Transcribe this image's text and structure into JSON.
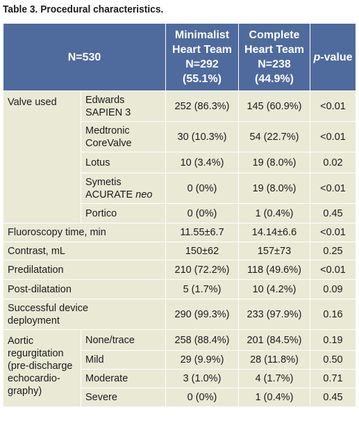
{
  "caption": "Table 3. Procedural characteristics.",
  "header": {
    "n": "N=530",
    "group1": [
      "Minimalist",
      "Heart Team",
      "N=292",
      "(55.1%)"
    ],
    "group2": [
      "Complete",
      "Heart Team",
      "N=238",
      "(44.9%)"
    ],
    "pvalue_italic": "p",
    "pvalue_rest": "-value"
  },
  "valve": {
    "label": "Valve used",
    "rows": [
      {
        "name": [
          "Edwards",
          "SAPIEN 3"
        ],
        "min": "252 (86.3%)",
        "comp": "145 (60.9%)",
        "p": "<0.01"
      },
      {
        "name": [
          "Medtronic",
          "CoreValve"
        ],
        "min": "30 (10.3%)",
        "comp": "54 (22.7%)",
        "p": "<0.01"
      },
      {
        "name": [
          "Lotus"
        ],
        "min": "10 (3.4%)",
        "comp": "19 (8.0%)",
        "p": "0.02"
      },
      {
        "name": [
          "Symetis",
          "ACURATE "
        ],
        "name_italic": "neo",
        "min": "0 (0%)",
        "comp": "19 (8.0%)",
        "p": "<0.01"
      },
      {
        "name": [
          "Portico"
        ],
        "min": "0 (0%)",
        "comp": "1 (0.4%)",
        "p": "0.45"
      }
    ]
  },
  "single_rows": [
    {
      "label": [
        "Fluoroscopy time, min"
      ],
      "min": "11.55±6.7",
      "comp": "14.14±6.6",
      "p": "<0.01"
    },
    {
      "label": [
        "Contrast, mL"
      ],
      "min": "150±62",
      "comp": "157±73",
      "p": "0.25"
    },
    {
      "label": [
        "Predilatation"
      ],
      "min": "210 (72.2%)",
      "comp": "118 (49.6%)",
      "p": "<0.01"
    },
    {
      "label": [
        "Post-dilatation"
      ],
      "min": "5 (1.7%)",
      "comp": "10 (4.2%)",
      "p": "0.09"
    },
    {
      "label": [
        "Successful device",
        "deployment"
      ],
      "min": "290 (99.3%)",
      "comp": "233 (97.9%)",
      "p": "0.16"
    }
  ],
  "aortic": {
    "label": [
      "Aortic",
      "regurgitation",
      "(pre-discharge",
      "echocardio-",
      "graphy)"
    ],
    "rows": [
      {
        "name": "None/trace",
        "min": "258 (88.4%)",
        "comp": "201 (84.5%)",
        "p": "0.19"
      },
      {
        "name": "Mild",
        "min": "29 (9.9%)",
        "comp": "28 (11.8%)",
        "p": "0.50"
      },
      {
        "name": "Moderate",
        "min": "3 (1.0%)",
        "comp": "4 (1.7%)",
        "p": "0.71"
      },
      {
        "name": "Severe",
        "min": "0 (0%)",
        "comp": "1 (0.4%)",
        "p": "0.45"
      }
    ]
  },
  "colors": {
    "header_bg": "#4f6a9c",
    "cell_bg": "#e9e9d6",
    "border": "#ffffff"
  }
}
